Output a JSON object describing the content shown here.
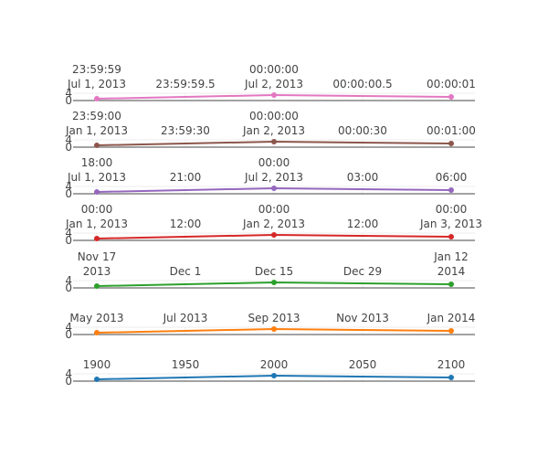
{
  "colors": {
    "text": "#444444",
    "axis": "#444444",
    "grid": "#eeeeee",
    "background": "#ffffff"
  },
  "chart_data": [
    {
      "type": "line",
      "color": "#e377c2",
      "xticks": [
        {
          "l1": "23:59:59",
          "l2": "Jul 1, 2013"
        },
        {
          "l1": "23:59:59.5",
          "l2": ""
        },
        {
          "l1": "00:00:00",
          "l2": "Jul 2, 2013"
        },
        {
          "l1": "00:00:00.5",
          "l2": ""
        },
        {
          "l1": "00:00:01",
          "l2": ""
        }
      ],
      "xlim": [
        "2013-07-01 23:59:59",
        "2013-07-02 00:00:01"
      ],
      "x": [
        "2013-07-01 23:59:59",
        "2013-07-02 00:00:00",
        "2013-07-02 00:00:01"
      ],
      "y": [
        1,
        3,
        2
      ],
      "yticks": [
        "0",
        "4"
      ],
      "ylim": [
        0,
        4
      ]
    },
    {
      "type": "line",
      "color": "#8c564b",
      "xticks": [
        {
          "l1": "23:59:00",
          "l2": "Jan 1, 2013"
        },
        {
          "l1": "23:59:30",
          "l2": ""
        },
        {
          "l1": "00:00:00",
          "l2": "Jan 2, 2013"
        },
        {
          "l1": "00:00:30",
          "l2": ""
        },
        {
          "l1": "00:01:00",
          "l2": ""
        }
      ],
      "xlim": [
        "2013-01-01 23:59:00",
        "2013-01-02 00:01:00"
      ],
      "x": [
        "2013-01-01 23:59:00",
        "2013-01-02 00:00:00",
        "2013-01-02 00:01:00"
      ],
      "y": [
        1,
        3,
        2
      ],
      "yticks": [
        "0",
        "4"
      ],
      "ylim": [
        0,
        4
      ]
    },
    {
      "type": "line",
      "color": "#9467bd",
      "xticks": [
        {
          "l1": "18:00",
          "l2": "Jul 1, 2013"
        },
        {
          "l1": "21:00",
          "l2": ""
        },
        {
          "l1": "00:00",
          "l2": "Jul 2, 2013"
        },
        {
          "l1": "03:00",
          "l2": ""
        },
        {
          "l1": "06:00",
          "l2": ""
        }
      ],
      "xlim": [
        "2013-07-01 18:00",
        "2013-07-02 06:00"
      ],
      "x": [
        "2013-07-01 18:00",
        "2013-07-02 00:00",
        "2013-07-02 06:00"
      ],
      "y": [
        1,
        3,
        2
      ],
      "yticks": [
        "0",
        "4"
      ],
      "ylim": [
        0,
        4
      ]
    },
    {
      "type": "line",
      "color": "#d62728",
      "xticks": [
        {
          "l1": "00:00",
          "l2": "Jan 1, 2013"
        },
        {
          "l1": "12:00",
          "l2": ""
        },
        {
          "l1": "00:00",
          "l2": "Jan 2, 2013"
        },
        {
          "l1": "12:00",
          "l2": ""
        },
        {
          "l1": "00:00",
          "l2": "Jan 3, 2013"
        }
      ],
      "xlim": [
        "2013-01-01",
        "2013-01-03"
      ],
      "x": [
        "2013-01-01",
        "2013-01-02",
        "2013-01-03"
      ],
      "y": [
        1,
        3,
        2
      ],
      "yticks": [
        "0",
        "4"
      ],
      "ylim": [
        0,
        4
      ]
    },
    {
      "type": "line",
      "color": "#2ca02c",
      "xticks": [
        {
          "l1": "Nov 17",
          "l2": "2013"
        },
        {
          "l1": "Dec 1",
          "l2": ""
        },
        {
          "l1": "Dec 15",
          "l2": ""
        },
        {
          "l1": "Dec 29",
          "l2": ""
        },
        {
          "l1": "Jan 12",
          "l2": "2014"
        }
      ],
      "xlim": [
        "2013-11-17",
        "2014-01-12"
      ],
      "x": [
        "2013-11-17",
        "2013-12-15",
        "2014-01-12"
      ],
      "y": [
        1,
        3,
        2
      ],
      "yticks": [
        "0",
        "4"
      ],
      "ylim": [
        0,
        4
      ]
    },
    {
      "type": "line",
      "color": "#ff7f0e",
      "xticks": [
        {
          "l1": "May 2013",
          "l2": ""
        },
        {
          "l1": "Jul 2013",
          "l2": ""
        },
        {
          "l1": "Sep 2013",
          "l2": ""
        },
        {
          "l1": "Nov 2013",
          "l2": ""
        },
        {
          "l1": "Jan 2014",
          "l2": ""
        }
      ],
      "xlim": [
        "2013-05",
        "2014-01"
      ],
      "x": [
        "2013-05",
        "2013-09",
        "2014-01"
      ],
      "y": [
        1,
        3,
        2
      ],
      "yticks": [
        "0",
        "4"
      ],
      "ylim": [
        0,
        4
      ]
    },
    {
      "type": "line",
      "color": "#1f77b4",
      "xticks": [
        {
          "l1": "1900",
          "l2": ""
        },
        {
          "l1": "1950",
          "l2": ""
        },
        {
          "l1": "2000",
          "l2": ""
        },
        {
          "l1": "2050",
          "l2": ""
        },
        {
          "l1": "2100",
          "l2": ""
        }
      ],
      "xlim": [
        1900,
        2100
      ],
      "x": [
        1900,
        2000,
        2100
      ],
      "y": [
        1,
        3,
        2
      ],
      "yticks": [
        "0",
        "4"
      ],
      "ylim": [
        0,
        4
      ]
    }
  ]
}
